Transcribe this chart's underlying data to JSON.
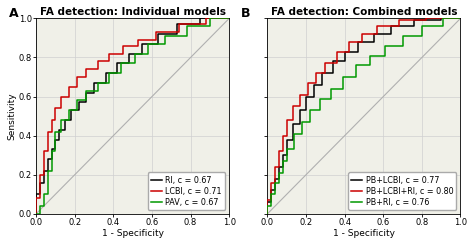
{
  "panel_A_title": "FA detection: Individual models",
  "panel_B_title": "FA detection: Combined models",
  "xlabel": "1 - Specificity",
  "ylabel": "Sensitivity",
  "xlim": [
    0.0,
    1.0
  ],
  "ylim": [
    0.0,
    1.0
  ],
  "xticks": [
    0.0,
    0.2,
    0.4,
    0.6,
    0.8,
    1.0
  ],
  "yticks": [
    0.0,
    0.2,
    0.4,
    0.6,
    0.8,
    1.0
  ],
  "background_color": "#f0f0e8",
  "diag_color": "#b0b0b0",
  "grid_color": "#d0d0d0",
  "title_fontsize": 7.5,
  "label_fontsize": 6.5,
  "tick_fontsize": 6.0,
  "legend_fontsize": 5.8,
  "linewidth": 1.1,
  "roc_A_RI": [
    [
      0,
      0
    ],
    [
      0,
      0.1
    ],
    [
      0.02,
      0.1
    ],
    [
      0.02,
      0.16
    ],
    [
      0.04,
      0.16
    ],
    [
      0.04,
      0.22
    ],
    [
      0.06,
      0.22
    ],
    [
      0.06,
      0.28
    ],
    [
      0.08,
      0.28
    ],
    [
      0.08,
      0.33
    ],
    [
      0.1,
      0.33
    ],
    [
      0.1,
      0.38
    ],
    [
      0.12,
      0.38
    ],
    [
      0.12,
      0.43
    ],
    [
      0.15,
      0.43
    ],
    [
      0.15,
      0.48
    ],
    [
      0.18,
      0.48
    ],
    [
      0.18,
      0.53
    ],
    [
      0.22,
      0.53
    ],
    [
      0.22,
      0.57
    ],
    [
      0.26,
      0.57
    ],
    [
      0.26,
      0.62
    ],
    [
      0.3,
      0.62
    ],
    [
      0.3,
      0.67
    ],
    [
      0.36,
      0.67
    ],
    [
      0.36,
      0.72
    ],
    [
      0.42,
      0.72
    ],
    [
      0.42,
      0.77
    ],
    [
      0.48,
      0.77
    ],
    [
      0.48,
      0.82
    ],
    [
      0.55,
      0.82
    ],
    [
      0.55,
      0.87
    ],
    [
      0.63,
      0.87
    ],
    [
      0.63,
      0.92
    ],
    [
      0.73,
      0.92
    ],
    [
      0.73,
      0.97
    ],
    [
      0.85,
      0.97
    ],
    [
      0.85,
      1.0
    ],
    [
      1.0,
      1.0
    ]
  ],
  "roc_A_LCBI": [
    [
      0,
      0
    ],
    [
      0,
      0.08
    ],
    [
      0.02,
      0.08
    ],
    [
      0.02,
      0.2
    ],
    [
      0.04,
      0.2
    ],
    [
      0.04,
      0.32
    ],
    [
      0.06,
      0.32
    ],
    [
      0.06,
      0.42
    ],
    [
      0.08,
      0.42
    ],
    [
      0.08,
      0.48
    ],
    [
      0.1,
      0.48
    ],
    [
      0.1,
      0.54
    ],
    [
      0.13,
      0.54
    ],
    [
      0.13,
      0.6
    ],
    [
      0.17,
      0.6
    ],
    [
      0.17,
      0.65
    ],
    [
      0.21,
      0.65
    ],
    [
      0.21,
      0.7
    ],
    [
      0.26,
      0.7
    ],
    [
      0.26,
      0.74
    ],
    [
      0.32,
      0.74
    ],
    [
      0.32,
      0.78
    ],
    [
      0.38,
      0.78
    ],
    [
      0.38,
      0.82
    ],
    [
      0.45,
      0.82
    ],
    [
      0.45,
      0.86
    ],
    [
      0.53,
      0.86
    ],
    [
      0.53,
      0.89
    ],
    [
      0.62,
      0.89
    ],
    [
      0.62,
      0.93
    ],
    [
      0.74,
      0.93
    ],
    [
      0.74,
      0.97
    ],
    [
      0.88,
      0.97
    ],
    [
      0.88,
      1.0
    ],
    [
      1.0,
      1.0
    ]
  ],
  "roc_A_PAV": [
    [
      0,
      0
    ],
    [
      0,
      0.0
    ],
    [
      0.02,
      0.0
    ],
    [
      0.02,
      0.04
    ],
    [
      0.04,
      0.04
    ],
    [
      0.04,
      0.1
    ],
    [
      0.06,
      0.1
    ],
    [
      0.06,
      0.22
    ],
    [
      0.08,
      0.22
    ],
    [
      0.08,
      0.32
    ],
    [
      0.1,
      0.32
    ],
    [
      0.1,
      0.42
    ],
    [
      0.13,
      0.42
    ],
    [
      0.13,
      0.48
    ],
    [
      0.17,
      0.48
    ],
    [
      0.17,
      0.53
    ],
    [
      0.21,
      0.53
    ],
    [
      0.21,
      0.58
    ],
    [
      0.26,
      0.58
    ],
    [
      0.26,
      0.63
    ],
    [
      0.32,
      0.63
    ],
    [
      0.32,
      0.67
    ],
    [
      0.38,
      0.67
    ],
    [
      0.38,
      0.72
    ],
    [
      0.44,
      0.72
    ],
    [
      0.44,
      0.77
    ],
    [
      0.51,
      0.77
    ],
    [
      0.51,
      0.82
    ],
    [
      0.58,
      0.82
    ],
    [
      0.58,
      0.87
    ],
    [
      0.67,
      0.87
    ],
    [
      0.67,
      0.91
    ],
    [
      0.78,
      0.91
    ],
    [
      0.78,
      0.96
    ],
    [
      0.9,
      0.96
    ],
    [
      0.9,
      1.0
    ],
    [
      1.0,
      1.0
    ]
  ],
  "roc_B_PBLCBI": [
    [
      0,
      0
    ],
    [
      0,
      0.06
    ],
    [
      0.02,
      0.06
    ],
    [
      0.02,
      0.12
    ],
    [
      0.04,
      0.12
    ],
    [
      0.04,
      0.18
    ],
    [
      0.06,
      0.18
    ],
    [
      0.06,
      0.24
    ],
    [
      0.08,
      0.24
    ],
    [
      0.08,
      0.3
    ],
    [
      0.1,
      0.3
    ],
    [
      0.1,
      0.38
    ],
    [
      0.13,
      0.38
    ],
    [
      0.13,
      0.46
    ],
    [
      0.17,
      0.46
    ],
    [
      0.17,
      0.53
    ],
    [
      0.2,
      0.53
    ],
    [
      0.2,
      0.6
    ],
    [
      0.24,
      0.6
    ],
    [
      0.24,
      0.66
    ],
    [
      0.28,
      0.66
    ],
    [
      0.28,
      0.72
    ],
    [
      0.34,
      0.72
    ],
    [
      0.34,
      0.78
    ],
    [
      0.4,
      0.78
    ],
    [
      0.4,
      0.83
    ],
    [
      0.47,
      0.83
    ],
    [
      0.47,
      0.88
    ],
    [
      0.55,
      0.88
    ],
    [
      0.55,
      0.92
    ],
    [
      0.64,
      0.92
    ],
    [
      0.64,
      0.96
    ],
    [
      0.76,
      0.96
    ],
    [
      0.76,
      0.99
    ],
    [
      0.9,
      0.99
    ],
    [
      0.9,
      1.0
    ],
    [
      1.0,
      1.0
    ]
  ],
  "roc_B_PBLCBIRI": [
    [
      0,
      0
    ],
    [
      0,
      0.07
    ],
    [
      0.02,
      0.07
    ],
    [
      0.02,
      0.16
    ],
    [
      0.04,
      0.16
    ],
    [
      0.04,
      0.24
    ],
    [
      0.06,
      0.24
    ],
    [
      0.06,
      0.32
    ],
    [
      0.08,
      0.32
    ],
    [
      0.08,
      0.4
    ],
    [
      0.1,
      0.4
    ],
    [
      0.1,
      0.48
    ],
    [
      0.13,
      0.48
    ],
    [
      0.13,
      0.55
    ],
    [
      0.17,
      0.55
    ],
    [
      0.17,
      0.61
    ],
    [
      0.21,
      0.61
    ],
    [
      0.21,
      0.67
    ],
    [
      0.25,
      0.67
    ],
    [
      0.25,
      0.72
    ],
    [
      0.3,
      0.72
    ],
    [
      0.3,
      0.77
    ],
    [
      0.36,
      0.77
    ],
    [
      0.36,
      0.83
    ],
    [
      0.42,
      0.83
    ],
    [
      0.42,
      0.88
    ],
    [
      0.49,
      0.88
    ],
    [
      0.49,
      0.92
    ],
    [
      0.57,
      0.92
    ],
    [
      0.57,
      0.96
    ],
    [
      0.68,
      0.96
    ],
    [
      0.68,
      0.99
    ],
    [
      0.82,
      0.99
    ],
    [
      0.82,
      1.0
    ],
    [
      1.0,
      1.0
    ]
  ],
  "roc_B_PBRI": [
    [
      0,
      0
    ],
    [
      0,
      0.04
    ],
    [
      0.02,
      0.04
    ],
    [
      0.02,
      0.1
    ],
    [
      0.04,
      0.1
    ],
    [
      0.04,
      0.16
    ],
    [
      0.06,
      0.16
    ],
    [
      0.06,
      0.21
    ],
    [
      0.08,
      0.21
    ],
    [
      0.08,
      0.27
    ],
    [
      0.1,
      0.27
    ],
    [
      0.1,
      0.33
    ],
    [
      0.14,
      0.33
    ],
    [
      0.14,
      0.41
    ],
    [
      0.18,
      0.41
    ],
    [
      0.18,
      0.47
    ],
    [
      0.22,
      0.47
    ],
    [
      0.22,
      0.53
    ],
    [
      0.27,
      0.53
    ],
    [
      0.27,
      0.59
    ],
    [
      0.33,
      0.59
    ],
    [
      0.33,
      0.64
    ],
    [
      0.39,
      0.64
    ],
    [
      0.39,
      0.7
    ],
    [
      0.46,
      0.7
    ],
    [
      0.46,
      0.76
    ],
    [
      0.53,
      0.76
    ],
    [
      0.53,
      0.81
    ],
    [
      0.61,
      0.81
    ],
    [
      0.61,
      0.86
    ],
    [
      0.7,
      0.86
    ],
    [
      0.7,
      0.91
    ],
    [
      0.8,
      0.91
    ],
    [
      0.8,
      0.96
    ],
    [
      0.91,
      0.96
    ],
    [
      0.91,
      1.0
    ],
    [
      1.0,
      1.0
    ]
  ],
  "legend_A": [
    {
      "color": "#000000",
      "label": "RI, c = 0.67"
    },
    {
      "color": "#cc0000",
      "label": "LCBI, c = 0.71"
    },
    {
      "color": "#009900",
      "label": "PAV, c = 0.67"
    }
  ],
  "legend_B": [
    {
      "color": "#000000",
      "label": "PB+LCBI, c = 0.77"
    },
    {
      "color": "#cc0000",
      "label": "PB+LCBI+RI, c = 0.80"
    },
    {
      "color": "#009900",
      "label": "PB+RI, c = 0.76"
    }
  ]
}
